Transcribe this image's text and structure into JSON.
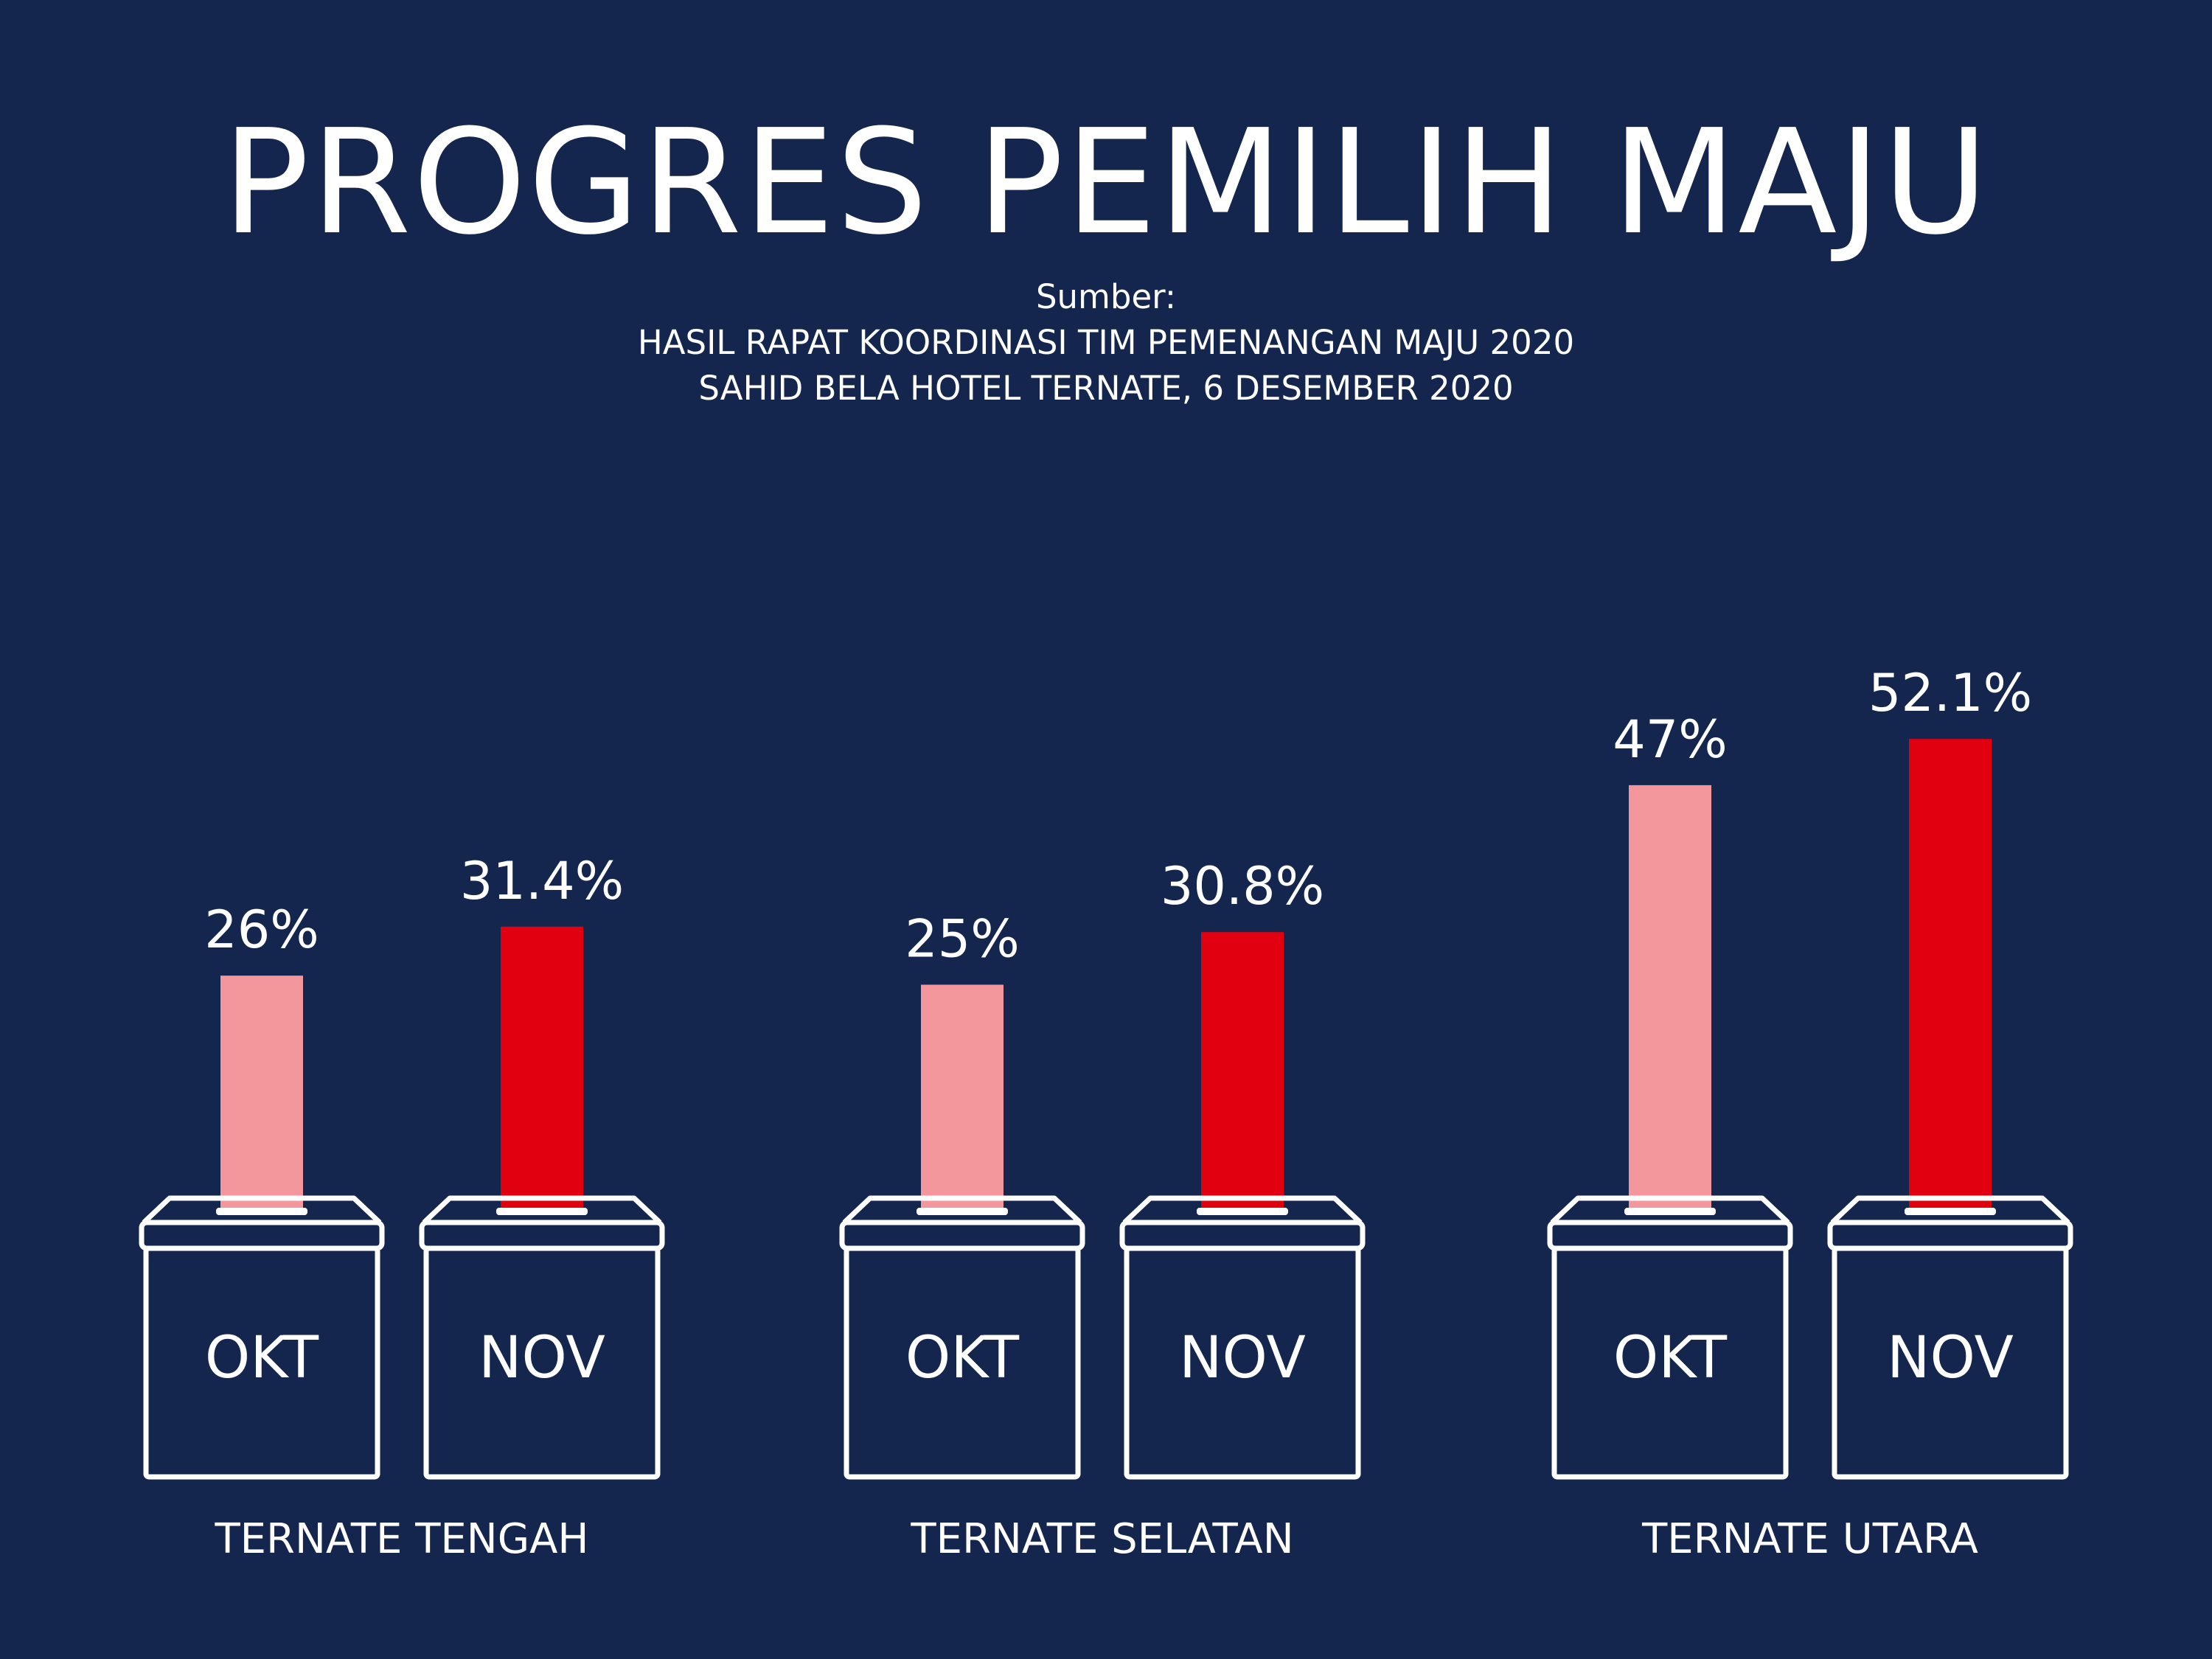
{
  "title": "PROGRES PEMILIH MAJU",
  "source": {
    "label": "Sumber:",
    "line1": "HASIL RAPAT KOORDINASI TIM PEMENANGAN MAJU 2020",
    "line2": "SAHID BELA HOTEL TERNATE, 6 DESEMBER 2020"
  },
  "colors": {
    "background": "#15264e",
    "okt": "#f4979d",
    "nov": "#e0000f",
    "outline": "#ffffff"
  },
  "icons": [
    "ballot-box-icon"
  ],
  "chart_data": {
    "type": "bar",
    "title": "PROGRES PEMILIH MAJU",
    "groups": [
      "TERNATE TENGAH",
      "TERNATE SELATAN",
      "TERNATE UTARA"
    ],
    "series": [
      {
        "name": "OKT",
        "values": [
          26,
          25,
          47
        ],
        "labels": [
          "26%",
          "25%",
          "47%"
        ]
      },
      {
        "name": "NOV",
        "values": [
          31.4,
          30.8,
          52.1
        ],
        "labels": [
          "31.4%",
          "30.8%",
          "52.1%"
        ]
      }
    ],
    "unit": "%",
    "ylim": [
      0,
      60
    ],
    "grid": false,
    "legend": "none"
  }
}
